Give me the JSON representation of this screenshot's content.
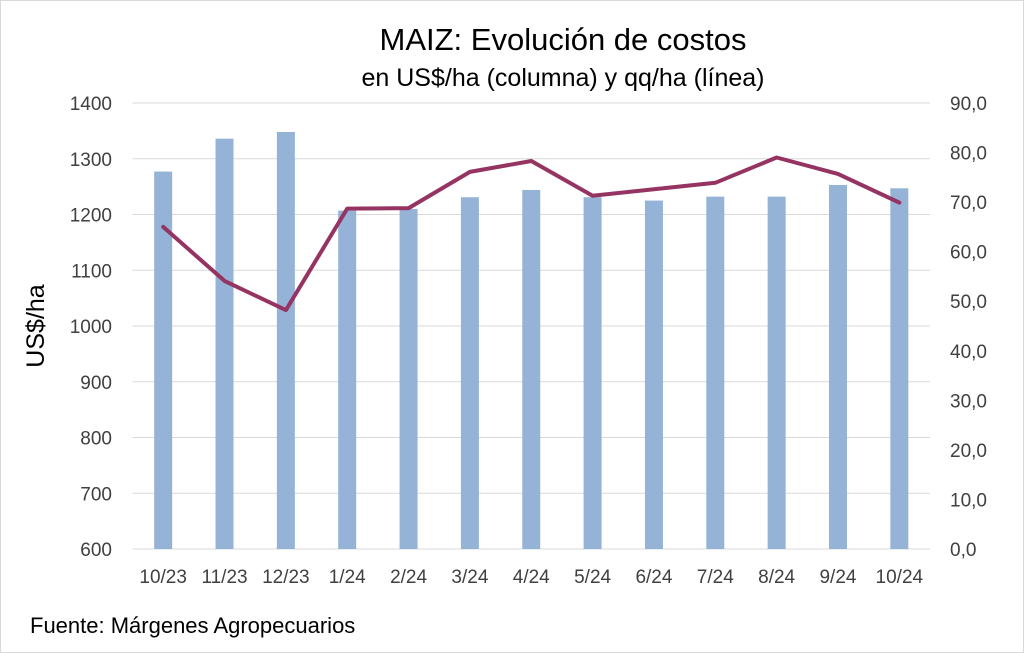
{
  "chart_data": {
    "type": "bar",
    "title": "MAIZ: Evolución de costos",
    "subtitle": "en US$/ha (columna) y qq/ha (línea)",
    "ylabel": "US$/ha",
    "y2label": "",
    "xlabel": "",
    "categories": [
      "10/23",
      "11/23",
      "12/23",
      "1/24",
      "2/24",
      "3/24",
      "4/24",
      "5/24",
      "6/24",
      "7/24",
      "8/24",
      "9/24",
      "10/24"
    ],
    "series": [
      {
        "name": "US$/ha",
        "type": "bar",
        "axis": "left",
        "color": "#95b3d7",
        "values": [
          1277,
          1336,
          1348,
          1207,
          1210,
          1231,
          1244,
          1231,
          1225,
          1232,
          1232,
          1253,
          1247
        ]
      },
      {
        "name": "qq/ha",
        "type": "line",
        "axis": "right",
        "color": "#953462",
        "values": [
          65.0,
          54.1,
          48.2,
          68.7,
          68.8,
          76.1,
          78.3,
          71.3,
          72.6,
          73.9,
          79.0,
          75.7,
          69.9
        ]
      }
    ],
    "ylim": [
      600,
      1400
    ],
    "yticks": [
      "1400",
      "1300",
      "1200",
      "1100",
      "1000",
      "900",
      "800",
      "700",
      "600"
    ],
    "y2lim": [
      0,
      90
    ],
    "y2ticks": [
      "90,0",
      "80,0",
      "70,0",
      "60,0",
      "50,0",
      "40,0",
      "30,0",
      "20,0",
      "10,0",
      "0,0"
    ],
    "grid": true,
    "legend": "none"
  },
  "footer": {
    "source": "Fuente: Márgenes Agropecuarios"
  }
}
